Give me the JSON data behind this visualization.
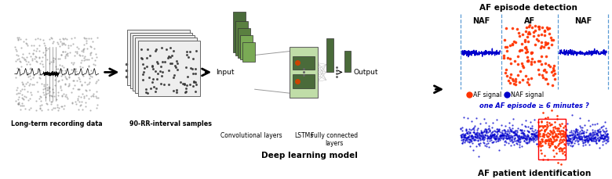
{
  "bg_color": "#ffffff",
  "label_long_term": "Long-term recording data",
  "label_90rr": "90-RR-interval samples",
  "label_dl": "Deep learning model",
  "label_input": "Input",
  "label_output": "Output",
  "label_conv": "Convolutional layers",
  "label_lstm": "LSTMs",
  "label_fc": "Fully connected\nlayers",
  "label_af_detection": "AF episode detection",
  "label_naf1": "NAF",
  "label_af": "AF",
  "label_naf2": "NAF",
  "label_af_signal": "AF signal",
  "label_naf_signal": "NAF signal",
  "label_one_af": "one AF episode ≥ 6 minutes ?",
  "label_af_patient": "AF patient identification",
  "dashed_color": "#5b9bd5",
  "af_signal_color": "#ff3300",
  "naf_signal_color": "#0000cc",
  "green_dark": "#4a6b3a",
  "green_mid": "#5a8040",
  "green_light": "#7aaa55",
  "green_lstm_bg": "#c0dda8"
}
